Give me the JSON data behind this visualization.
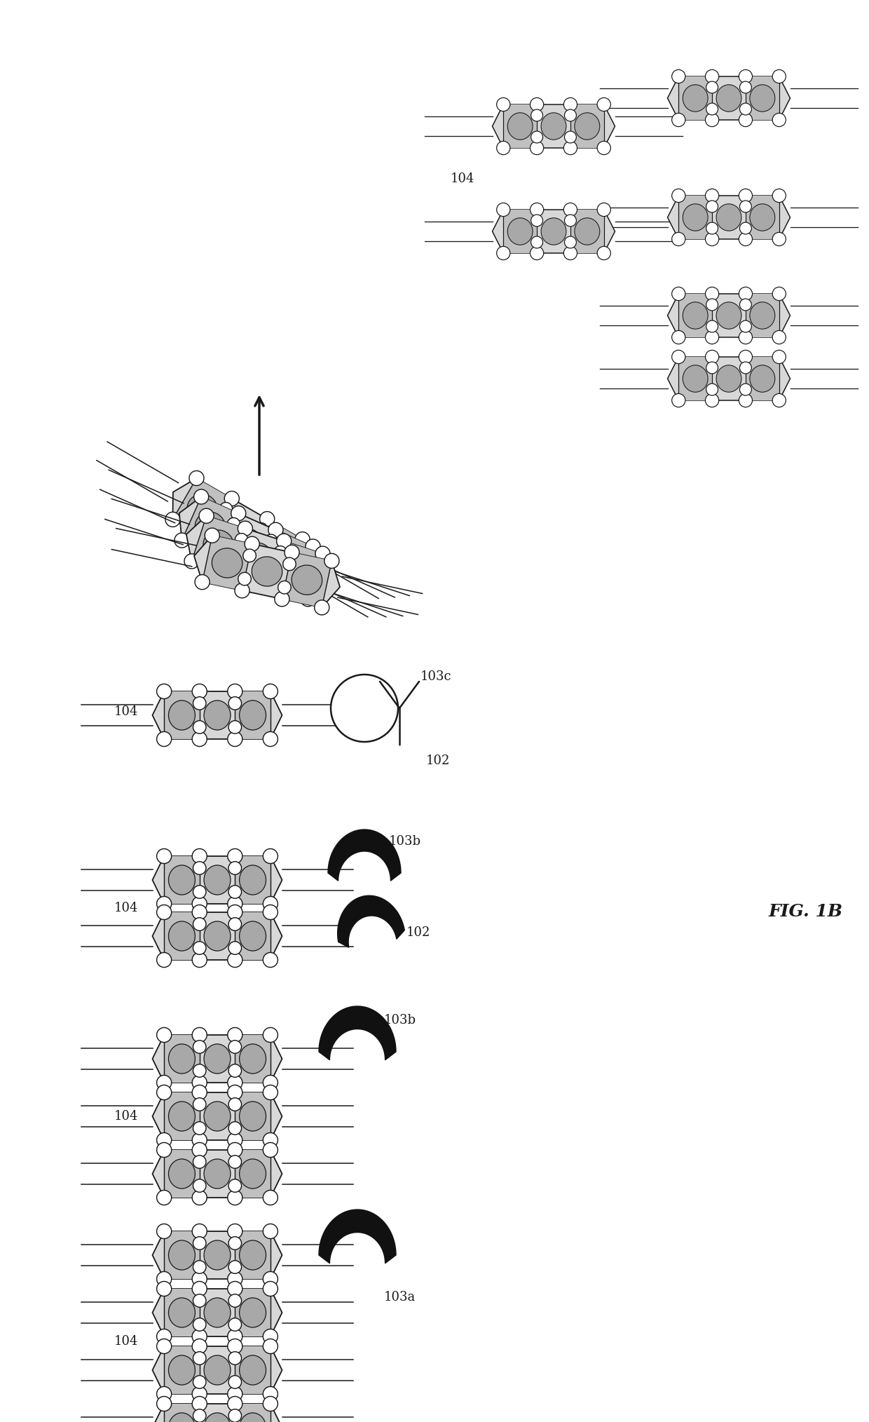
{
  "fig_label": "FIG. 1B",
  "background_color": "#ffffff",
  "line_color": "#1a1a1a",
  "fill_tag": "#d8d8d8",
  "fill_band": "#c0c0c0",
  "fill_oval": "#a8a8a8",
  "circle_fill": "#ffffff",
  "circle_edge": "#1a1a1a",
  "crescent_fill": "#111111",
  "label_104": "104",
  "label_103a": "103a",
  "label_103b": "103b",
  "label_103c": "103c",
  "label_102": "102",
  "font_size_label": 13
}
